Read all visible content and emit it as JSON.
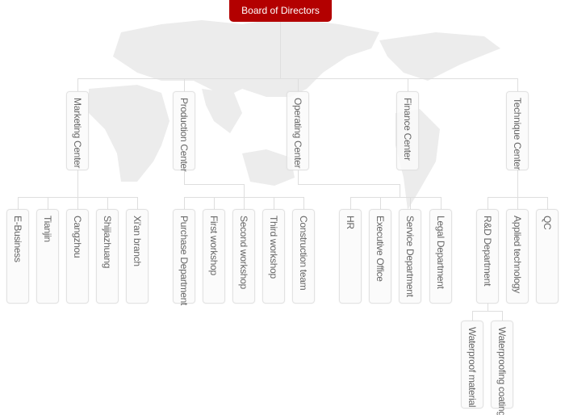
{
  "root": {
    "label": "Board of Directors",
    "color": "#b30000"
  },
  "centers": [
    {
      "label": "Marketing Center",
      "children": [
        {
          "label": "E-Business"
        },
        {
          "label": "Tianjin"
        },
        {
          "label": "Cangzhou"
        },
        {
          "label": "Shijiazhuang"
        },
        {
          "label": "Xi'an branch"
        }
      ]
    },
    {
      "label": "Production Center",
      "children": [
        {
          "label": "Purchase Department"
        },
        {
          "label": "First workshop"
        },
        {
          "label": "Second workshop"
        },
        {
          "label": "Third workshop"
        },
        {
          "label": "Construction team"
        }
      ]
    },
    {
      "label": "Operating Center",
      "children": [
        {
          "label": "HR"
        },
        {
          "label": "Executive Office"
        },
        {
          "label": "Service Department"
        },
        {
          "label": "Legal Department"
        }
      ]
    },
    {
      "label": "Finance Center",
      "children": []
    },
    {
      "label": "Technique Center",
      "children": [
        {
          "label": "R&D Department",
          "children": [
            {
              "label": "Waterproof material"
            },
            {
              "label": "Waterproofing coatings"
            }
          ]
        },
        {
          "label": "Applied technology"
        },
        {
          "label": "QC"
        }
      ]
    }
  ]
}
